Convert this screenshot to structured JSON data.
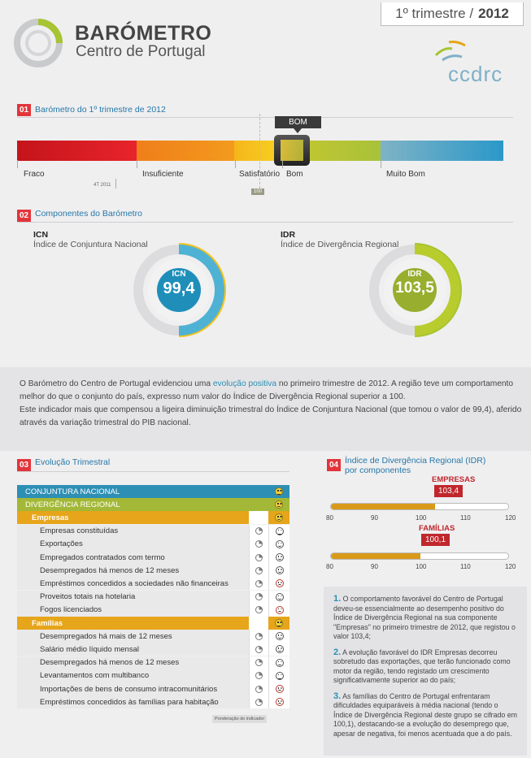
{
  "header": {
    "period": "1º trimestre /",
    "year": "2012",
    "title": "BARÓMETRO",
    "subtitle": "Centro de Portugal",
    "brand": "ccdrc"
  },
  "section1": {
    "num": "01",
    "title": "Barómetro do 1º trimestre de 2012",
    "badge": "BOM",
    "labels": [
      "Fraco",
      "Insuficiente",
      "Satisfatório",
      "Bom",
      "Muito Bom"
    ],
    "prev_tag": "4T 2011",
    "ref_tag": "100"
  },
  "section2": {
    "num": "02",
    "title": "Componentes do Barómetro",
    "icn": {
      "code": "ICN",
      "name": "Índice de Conjuntura Nacional",
      "value": "99,4"
    },
    "idr": {
      "code": "IDR",
      "name": "Índice de Divergência Regional",
      "value": "103,5"
    }
  },
  "summary": {
    "p1a": "O Barómetro do Centro de Portugal evidenciou uma ",
    "p1hl": "evolução positiva",
    "p1b": " no primeiro trimestre de 2012. A região teve um comportamento",
    "p2": "melhor do que o conjunto do país, expresso num valor do Índice de Divergência Regional superior a 100.",
    "p3": "Este indicador mais que compensou a ligeira diminuição trimestral do Índice de Conjuntura Nacional (que tomou o valor de 99,4), aferido",
    "p4": "através da variação trimestral do PIB nacional."
  },
  "section3": {
    "num": "03",
    "title": "Evolução Trimestral",
    "rows": [
      {
        "label": "CONJUNTURA NACIONAL",
        "kind": "cn",
        "face": "neutral"
      },
      {
        "label": "DIVERGÊNCIA REGIONAL",
        "kind": "dr",
        "face": "smile"
      },
      {
        "label": "Empresas",
        "kind": "grp",
        "face": "smile"
      },
      {
        "label": "Empresas constituídas",
        "kind": "item",
        "face": "neutral"
      },
      {
        "label": "Exportações",
        "kind": "item",
        "face": "smile"
      },
      {
        "label": "Empregados contratados com termo",
        "kind": "item",
        "face": "smile"
      },
      {
        "label": "Desempregados há menos de 12 meses",
        "kind": "item",
        "face": "smile"
      },
      {
        "label": "Empréstimos concedidos a sociedades não financeiras",
        "kind": "item",
        "face": "sad"
      },
      {
        "label": "Proveitos totais na hotelaria",
        "kind": "item",
        "face": "smile"
      },
      {
        "label": "Fogos licenciados",
        "kind": "item",
        "face": "sad"
      },
      {
        "label": "Famílias",
        "kind": "grp",
        "face": "neutral"
      },
      {
        "label": "Desempregados  há mais de 12 meses",
        "kind": "item",
        "face": "smile"
      },
      {
        "label": "Salário médio líquido mensal",
        "kind": "item",
        "face": "smile"
      },
      {
        "label": "Desempregados há menos de 12 meses",
        "kind": "item",
        "face": "smile"
      },
      {
        "label": "Levantamentos com multibanco",
        "kind": "item",
        "face": "neutral"
      },
      {
        "label": "Importações de bens de consumo intracomunitários",
        "kind": "item",
        "face": "sad"
      },
      {
        "label": "Empréstimos concedidos às famílias para habitação",
        "kind": "item",
        "face": "sad"
      }
    ],
    "footnote": "Ponderação do indicador"
  },
  "section4": {
    "num": "04",
    "title_l1": "Índice de Divergência Regional (IDR)",
    "title_l2": "por componentes",
    "axis": [
      "80",
      "90",
      "100",
      "110",
      "120"
    ],
    "empresas": {
      "label": "EMPRESAS",
      "value": "103,4",
      "num": 103.4
    },
    "familias": {
      "label": "FAMÍLIAS",
      "value": "100,1",
      "num": 100.1
    }
  },
  "notes": {
    "n1": "1.",
    "t1": " O comportamento favorável do Centro de Portugal deveu-se essencialmente ao desempenho positivo do Índice de Divergência Regional na sua componente \"Empresas\" no primeiro trimestre de 2012, que registou o valor 103,4;",
    "n2": "2.",
    "t2": " A evolução favorável do IDR Empresas decorreu sobretudo das exportações, que terão funcionado como motor da região, tendo registado um crescimento significativamente superior ao do país;",
    "n3": "3.",
    "t3": " As famílias do Centro de Portugal enfrentaram dificuldades equiparáveis à média nacional (tendo o Índice de Divergência Regional deste grupo se cifrado em 100,1), destacando-se a evolução do desemprego que, apesar de negativa, foi menos acentuada que a do país."
  },
  "colors": {
    "accent": "#2577a8",
    "red": "#e2343a",
    "blue": "#2e8fb5",
    "green": "#a3b836",
    "orange": "#e6a51a"
  }
}
